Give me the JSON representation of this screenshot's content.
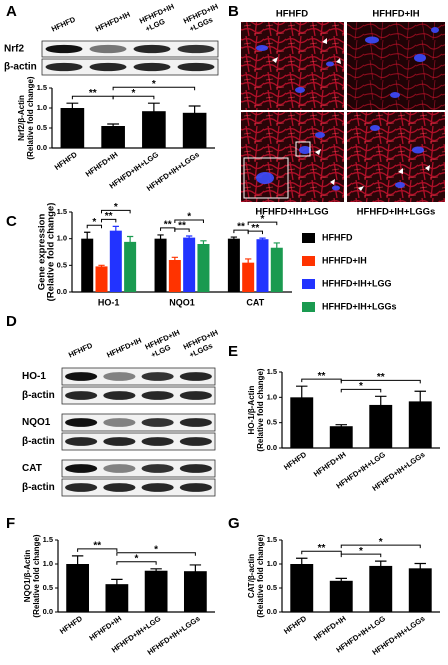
{
  "panel_labels": [
    "A",
    "B",
    "C",
    "D",
    "E",
    "F",
    "G"
  ],
  "blots": [
    {
      "lanes": [
        [
          "HFHFD"
        ],
        [
          "HFHFD+IH"
        ],
        [
          "HFHFD+IH",
          "+LGG"
        ],
        [
          "HFHFD+IH",
          "+LGGs"
        ]
      ],
      "rows": [
        "Nrf2",
        "β-actin"
      ]
    },
    {
      "lanes": [
        [
          "HFHFD"
        ],
        [
          "HFHFD+IH"
        ],
        [
          "HFHFD+IH",
          "+LGG"
        ],
        [
          "HFHFD+IH",
          "+LGGs"
        ]
      ],
      "rows": [
        "HO-1",
        "β-actin",
        "NQO1",
        "β-actin",
        "CAT",
        "β-actin"
      ]
    }
  ],
  "images": {
    "labels": [
      "HFHFD",
      "HFHFD+IH",
      "HFHFD+IH+LGG",
      "HFHFD+IH+LGGs"
    ]
  },
  "chart_data": [
    {
      "type": "bar",
      "ylabel": [
        "Nrf2/β-Actin",
        "(Relative fold change)"
      ],
      "categories": [
        "HFHFD",
        "HFHFD+IH",
        "HFHFD+IH+LGG",
        "HFHFD+IH+LGGs"
      ],
      "values": [
        1.0,
        0.55,
        0.92,
        0.88
      ],
      "errors": [
        0.12,
        0.05,
        0.2,
        0.17
      ],
      "color": "#000000",
      "ylim": [
        0,
        1.5
      ],
      "yticks": [
        {
          "value": 0,
          "label": "0.0"
        },
        0.5,
        {
          "value": 1,
          "label": "1.0"
        },
        1.5
      ],
      "annotations": [
        {
          "text": "**",
          "between": [
            0,
            1
          ]
        },
        {
          "text": "*",
          "between": [
            1,
            2
          ]
        },
        {
          "text": "*",
          "between": [
            1,
            3
          ]
        }
      ]
    },
    {
      "type": "grouped_bar",
      "ylabel": [
        "Gene expression",
        "(Relative fold change)"
      ],
      "categories": [
        "HO-1",
        "NQO1",
        "CAT"
      ],
      "series": [
        {
          "name": "HFHFD",
          "color": "#000000",
          "values": [
            1.0,
            1.0,
            1.0
          ],
          "errors": [
            0.12,
            0.07,
            0.03
          ]
        },
        {
          "name": "HFHFD+IH",
          "color": "#ff3300",
          "values": [
            0.48,
            0.6,
            0.55
          ],
          "errors": [
            0.02,
            0.05,
            0.07
          ]
        },
        {
          "name": "HFHFD+IH+LGG",
          "color": "#2233ff",
          "values": [
            1.15,
            1.02,
            0.99
          ],
          "errors": [
            0.08,
            0.03,
            0.02
          ]
        },
        {
          "name": "HFHFD+IH+LGGs",
          "color": "#1a9a50",
          "values": [
            0.94,
            0.9,
            0.83
          ],
          "errors": [
            0.1,
            0.06,
            0.09
          ]
        }
      ],
      "ylim": [
        0,
        1.5
      ],
      "yticks": [
        {
          "value": 0,
          "label": "0.0"
        },
        0.5,
        {
          "value": 1,
          "label": "1.0"
        },
        1.5
      ],
      "legend": "right",
      "annotations": [
        {
          "text": "*",
          "category": 0,
          "between": [
            0,
            1
          ]
        },
        {
          "text": "**",
          "category": 0,
          "between": [
            1,
            2
          ]
        },
        {
          "text": "*",
          "category": 0,
          "between": [
            1,
            3
          ]
        },
        {
          "text": "**",
          "category": 1,
          "between": [
            0,
            1
          ]
        },
        {
          "text": "**",
          "category": 1,
          "between": [
            1,
            2
          ]
        },
        {
          "text": "*",
          "category": 1,
          "between": [
            1,
            3
          ]
        },
        {
          "text": "**",
          "category": 2,
          "between": [
            0,
            1
          ]
        },
        {
          "text": "**",
          "category": 2,
          "between": [
            1,
            2
          ]
        },
        {
          "text": "*",
          "category": 2,
          "between": [
            1,
            3
          ]
        }
      ]
    },
    {
      "type": "bar",
      "ylabel": [
        "HO-1/β-Actin",
        "(Relative fold change)"
      ],
      "categories": [
        "HFHFD",
        "HFHFD+IH",
        "HFHFD+IH+LGG",
        "HFHFD+IH+LGGs"
      ],
      "values": [
        1.0,
        0.43,
        0.85,
        0.92
      ],
      "errors": [
        0.22,
        0.03,
        0.17,
        0.2
      ],
      "color": "#000000",
      "ylim": [
        0,
        1.5
      ],
      "yticks": [
        {
          "value": 0,
          "label": "0.0"
        },
        0.5,
        {
          "value": 1,
          "label": "1.0"
        },
        1.5
      ],
      "annotations": [
        {
          "text": "**",
          "between": [
            0,
            1
          ]
        },
        {
          "text": "*",
          "between": [
            1,
            2
          ]
        },
        {
          "text": "**",
          "between": [
            1,
            3
          ]
        }
      ]
    },
    {
      "type": "bar",
      "ylabel": [
        "NQO1/β-Actin",
        "(Relative fold change)"
      ],
      "categories": [
        "HFHFD",
        "HFHFD+IH",
        "HFHFD+IH+LGG",
        "HFHFD+IH+LGGs"
      ],
      "values": [
        1.0,
        0.58,
        0.86,
        0.85
      ],
      "errors": [
        0.17,
        0.1,
        0.04,
        0.13
      ],
      "color": "#000000",
      "ylim": [
        0,
        1.5
      ],
      "yticks": [
        {
          "value": 0,
          "label": "0.0"
        },
        0.5,
        {
          "value": 1,
          "label": "1.0"
        },
        1.5
      ],
      "annotations": [
        {
          "text": "**",
          "between": [
            0,
            1
          ]
        },
        {
          "text": "*",
          "between": [
            1,
            2
          ]
        },
        {
          "text": "*",
          "between": [
            1,
            3
          ]
        }
      ]
    },
    {
      "type": "bar",
      "ylabel": [
        "CAT/β-actin",
        "(Relative fold change)"
      ],
      "categories": [
        "HFHFD",
        "HFHFD+IH",
        "HFHFD+IH+LGG",
        "HFHFD+IH+LGGs"
      ],
      "values": [
        1.0,
        0.65,
        0.96,
        0.91
      ],
      "errors": [
        0.12,
        0.05,
        0.1,
        0.1
      ],
      "color": "#000000",
      "ylim": [
        0,
        1.5
      ],
      "yticks": [
        {
          "value": 0,
          "label": "0.0"
        },
        0.5,
        {
          "value": 1,
          "label": "1.0"
        },
        1.5
      ],
      "annotations": [
        {
          "text": "**",
          "between": [
            0,
            1
          ]
        },
        {
          "text": "*",
          "between": [
            1,
            2
          ]
        },
        {
          "text": "*",
          "between": [
            1,
            3
          ]
        }
      ]
    }
  ]
}
